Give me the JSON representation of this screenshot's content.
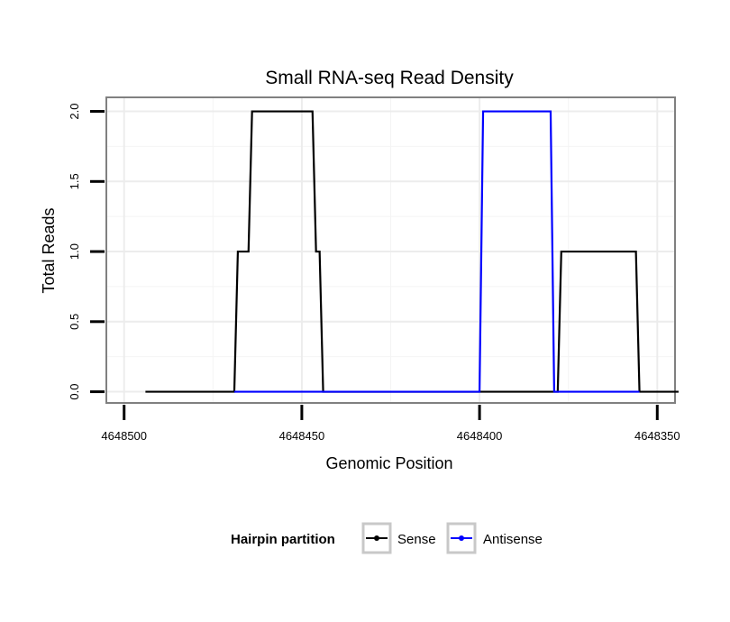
{
  "chart_data": {
    "type": "line",
    "title": "Small RNA-seq Read Density",
    "xlabel": "Genomic Position",
    "ylabel": "Total Reads",
    "xlim": [
      4648505,
      4648345
    ],
    "ylim": [
      -0.08,
      2.1
    ],
    "x_reversed": true,
    "xticks": [
      4648500,
      4648450,
      4648400,
      4648350
    ],
    "xtick_labels": [
      "4648500",
      "4648450",
      "4648400",
      "4648350"
    ],
    "yticks": [
      0,
      0.5,
      1,
      1.5,
      2
    ],
    "ytick_labels": [
      "0.0",
      "0.5",
      "1.0",
      "1.5",
      "2.0"
    ],
    "grid": true,
    "legend": {
      "title": "Hairpin partition",
      "placement": "bottom",
      "entries": [
        "Sense",
        "Antisense"
      ]
    },
    "series": [
      {
        "name": "Sense",
        "color": "#000000",
        "x": [
          4648494,
          4648469,
          4648468,
          4648465,
          4648464,
          4648447,
          4648446,
          4648445,
          4648444,
          4648378,
          4648377,
          4648356,
          4648355
        ],
        "y": [
          0,
          0,
          1,
          1,
          2,
          2,
          1,
          1,
          0,
          0,
          1,
          1,
          0
        ]
      },
      {
        "name": "Antisense",
        "color": "#0000ff",
        "x": [
          4648469,
          4648400,
          4648399,
          4648380,
          4648379,
          4648355
        ],
        "y": [
          0,
          0,
          2,
          2,
          0,
          0
        ]
      },
      {
        "name": "Sense",
        "color": "#000000",
        "x": [
          4648355,
          4648344
        ],
        "y": [
          0,
          0
        ]
      }
    ]
  }
}
